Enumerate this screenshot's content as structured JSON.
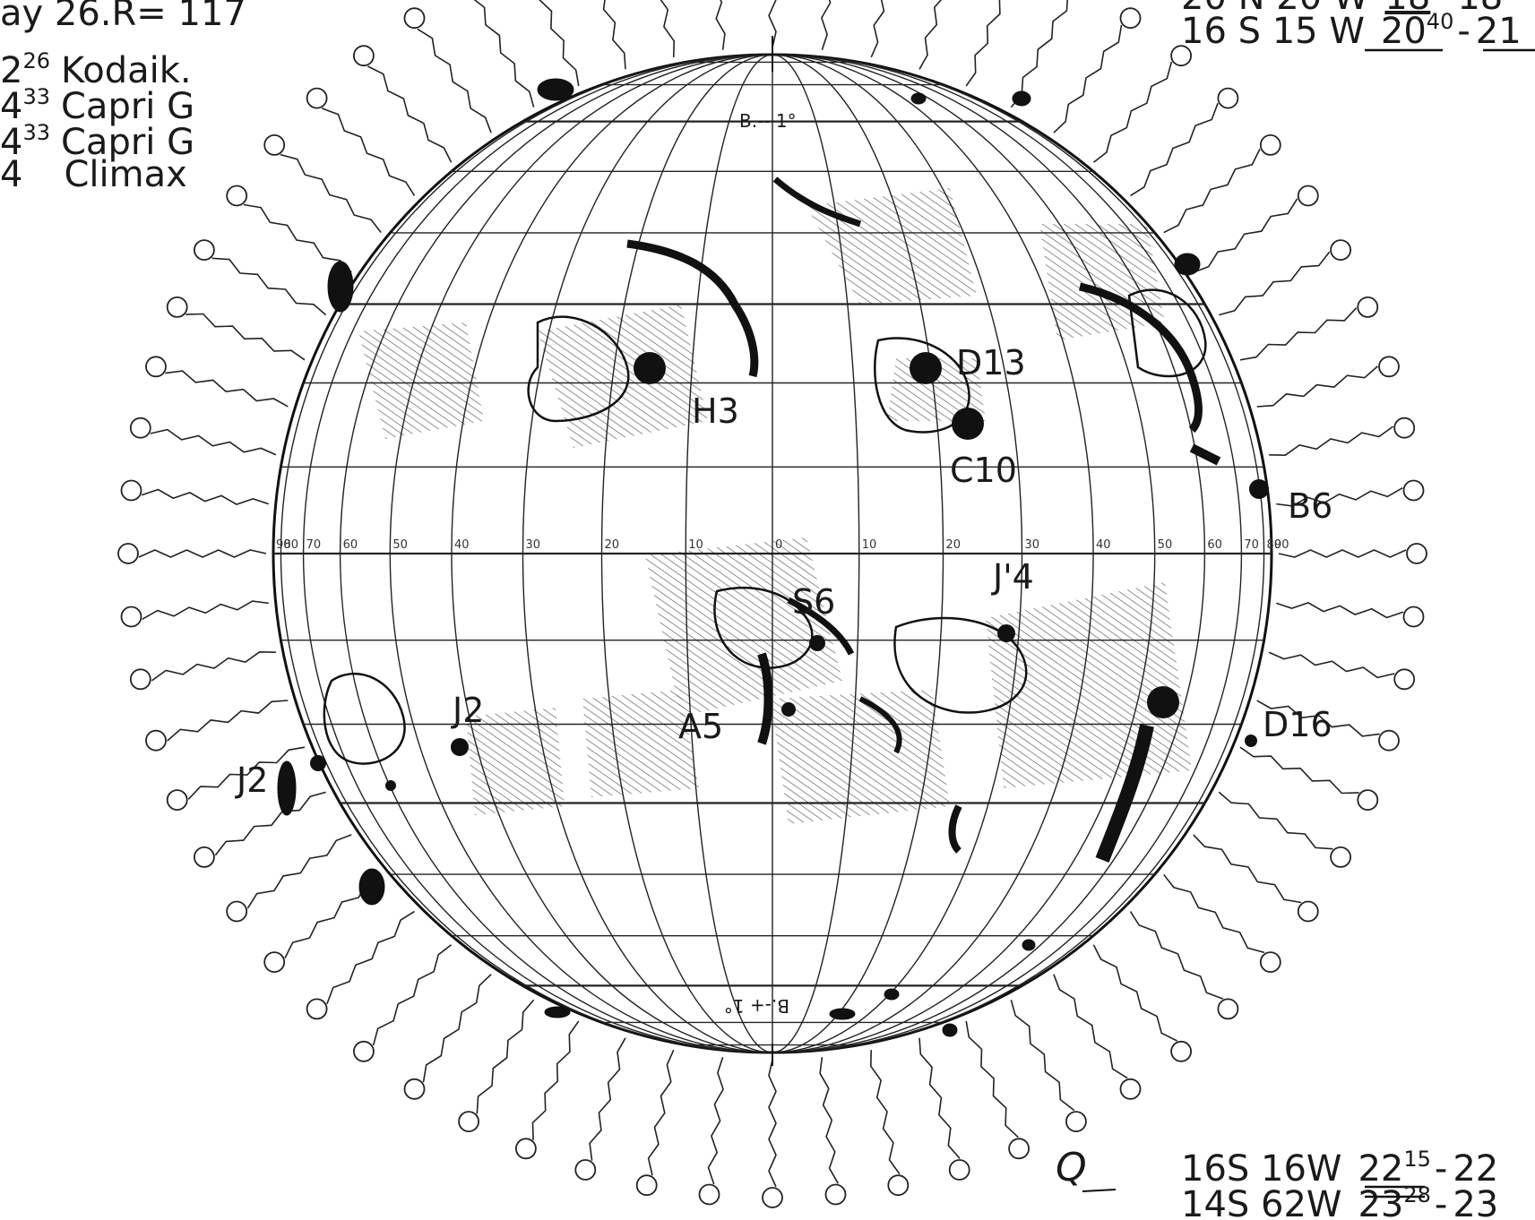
{
  "colors": {
    "ink": "#111111",
    "paper": "#ffffff",
    "hatch": "#555555"
  },
  "header": {
    "top_left": "ay 26.R= 117",
    "observations": [
      {
        "num": "2",
        "sup": "26",
        "name": "Kodaik."
      },
      {
        "num": "4",
        "sup": "33",
        "name": "Capri G"
      },
      {
        "num": "4",
        "sup": "33",
        "name": "Capri G"
      },
      {
        "num": "4",
        "sup": "",
        "name": "Climax"
      }
    ],
    "top_right": [
      {
        "coord": "20 N 20 W",
        "time_a": "18",
        "time_b": "18"
      },
      {
        "coord": "16 S 15 W",
        "time_a": "20",
        "sup_a": "40",
        "time_b": "21"
      }
    ]
  },
  "footer": {
    "bottom_right": [
      {
        "coord": "16S 16W",
        "time_a": "22",
        "sup_a": "15",
        "time_b": "22"
      },
      {
        "coord": "14S 62W",
        "time_a": "23",
        "sup_a": "28",
        "time_b": "23"
      }
    ],
    "signature": "Q"
  },
  "disk": {
    "b_top": "B.-- 1°",
    "b_bottom": "B.-+ 1°",
    "equator_ticks": [
      "90",
      "80",
      "70",
      "60",
      "50",
      "40",
      "30",
      "20",
      "10",
      "0",
      "10",
      "20",
      "30",
      "40",
      "50",
      "60",
      "70",
      "80",
      "90"
    ]
  },
  "regions": [
    {
      "id": "H3",
      "label": "H3"
    },
    {
      "id": "D13",
      "label": "D13"
    },
    {
      "id": "C10",
      "label": "C10"
    },
    {
      "id": "B6",
      "label": "B6"
    },
    {
      "id": "J4",
      "label": "J'4"
    },
    {
      "id": "S6",
      "label": "S6"
    },
    {
      "id": "J2a",
      "label": "J2"
    },
    {
      "id": "J2b",
      "label": "J2"
    },
    {
      "id": "A5",
      "label": "A5"
    },
    {
      "id": "D16",
      "label": "D16"
    }
  ]
}
